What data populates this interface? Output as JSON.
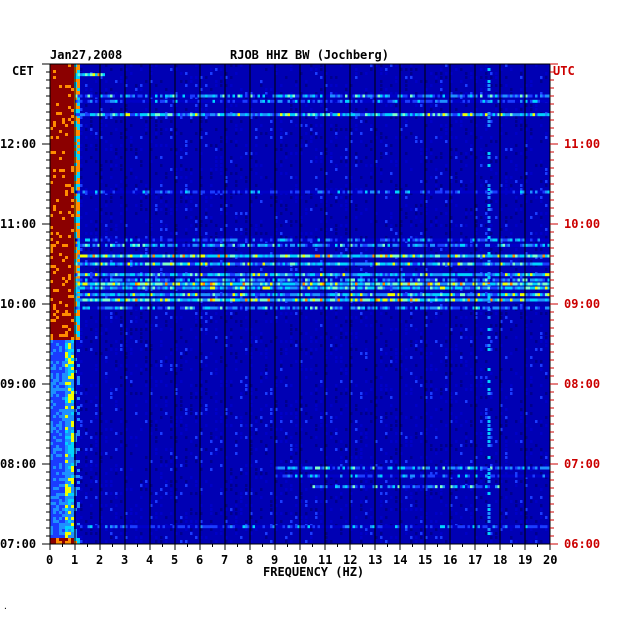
{
  "header": {
    "date": "Jan27,2008",
    "station": "RJOB HHZ BW (Jochberg)",
    "left_timezone": "CET",
    "right_timezone": "UTC"
  },
  "footer_mark": "·",
  "colors": {
    "background_field": "#0000b4",
    "grid": "#000000",
    "utc_text": "#cc0000",
    "cet_text": "#000000",
    "scale": [
      "#00008c",
      "#0000c8",
      "#1a3cff",
      "#1e90ff",
      "#00d2ff",
      "#7dffc8",
      "#f0ff00",
      "#ff8c00",
      "#8b0000"
    ]
  },
  "chart_data": {
    "type": "heatmap",
    "title": "RJOB HHZ BW (Jochberg)",
    "date": "Jan27,2008",
    "xlabel": "FREQUENCY (HZ)",
    "xlim": [
      0,
      20
    ],
    "x_ticks": [
      "0",
      "1",
      "2",
      "3",
      "4",
      "5",
      "6",
      "7",
      "8",
      "9",
      "10",
      "11",
      "12",
      "13",
      "14",
      "15",
      "16",
      "17",
      "18",
      "19",
      "20"
    ],
    "y_left_label": "CET",
    "y_left_ticks": [
      "12:00",
      "11:00",
      "10:00",
      "09:00",
      "08:00",
      "07:00"
    ],
    "y_right_label": "UTC",
    "y_right_ticks": [
      "11:00",
      "10:00",
      "09:00",
      "08:00",
      "07:00",
      "06:00"
    ],
    "ylim_cet": [
      "07:00",
      "13:00"
    ],
    "grid": true,
    "bands": [
      {
        "time_cet": "12:52",
        "f_range": [
          1,
          2.2
        ],
        "level": 5
      },
      {
        "time_cet": "12:36",
        "f_range": [
          1,
          20
        ],
        "level": 3
      },
      {
        "time_cet": "12:32",
        "f_range": [
          1,
          20
        ],
        "level": 2
      },
      {
        "time_cet": "12:22",
        "f_range": [
          1,
          20
        ],
        "level": 4
      },
      {
        "time_cet": "11:24",
        "f_range": [
          1,
          20
        ],
        "level": 2
      },
      {
        "time_cet": "10:48",
        "f_range": [
          1,
          20
        ],
        "level": 2
      },
      {
        "time_cet": "10:44",
        "f_range": [
          1,
          20
        ],
        "level": 3
      },
      {
        "time_cet": "10:36",
        "f_range": [
          1,
          20
        ],
        "level": 5
      },
      {
        "time_cet": "10:30",
        "f_range": [
          1,
          20
        ],
        "level": 4
      },
      {
        "time_cet": "10:22",
        "f_range": [
          1,
          20
        ],
        "level": 4
      },
      {
        "time_cet": "10:18",
        "f_range": [
          1,
          20
        ],
        "level": 3
      },
      {
        "time_cet": "10:15",
        "f_range": [
          1,
          20
        ],
        "level": 5
      },
      {
        "time_cet": "10:12",
        "f_range": [
          1,
          20
        ],
        "level": 4
      },
      {
        "time_cet": "10:07",
        "f_range": [
          1,
          20
        ],
        "level": 4
      },
      {
        "time_cet": "10:03",
        "f_range": [
          1,
          20
        ],
        "level": 5
      },
      {
        "time_cet": "09:57",
        "f_range": [
          1,
          20
        ],
        "level": 3
      },
      {
        "time_cet": "07:57",
        "f_range": [
          9,
          20
        ],
        "level": 3
      },
      {
        "time_cet": "07:51",
        "f_range": [
          9,
          20
        ],
        "level": 2
      },
      {
        "time_cet": "07:43",
        "f_range": [
          10.5,
          18
        ],
        "level": 3
      },
      {
        "time_cet": "07:13",
        "f_range": [
          1,
          20
        ],
        "level": 2
      }
    ],
    "low_frequency_band": {
      "f_range": [
        0,
        1
      ],
      "dominant_level": 8,
      "quiet_period_cet": [
        "07:05",
        "09:35"
      ]
    },
    "persistent_line_hz": 17.5
  }
}
